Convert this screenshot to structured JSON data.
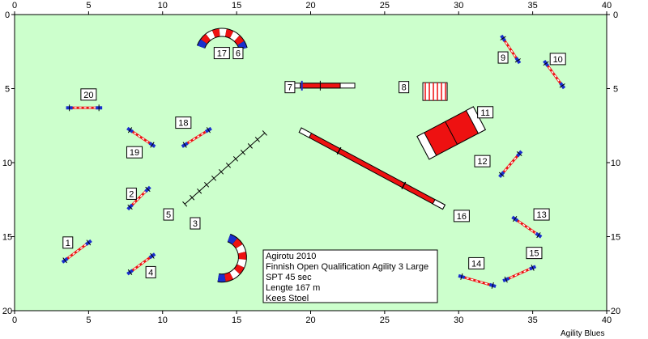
{
  "course": {
    "field": {
      "width_m": 40,
      "height_m": 20,
      "background": "#ccffcc"
    },
    "x_ticks": [
      "0",
      "5",
      "10",
      "15",
      "20",
      "25",
      "30",
      "35",
      "40"
    ],
    "y_ticks": [
      "0",
      "5",
      "10",
      "15",
      "20"
    ],
    "info_lines": [
      "Agirotu 2010",
      "Finnish Open Qualification Agility 3 Large",
      "SPT 45 sec",
      "Lengte 167 m",
      "Kees Stoel"
    ],
    "footer": "Agility Blues",
    "colors": {
      "red": "#ee1111",
      "blue": "#1a2fcc",
      "white": "#ffffff",
      "black": "#000000"
    },
    "obstacle_labels": [
      {
        "text": "1",
        "x": 3.6,
        "y": 15.4
      },
      {
        "text": "2",
        "x": 7.9,
        "y": 12.1
      },
      {
        "text": "3",
        "x": 12.2,
        "y": 14.1
      },
      {
        "text": "4",
        "x": 9.2,
        "y": 17.4
      },
      {
        "text": "5",
        "x": 10.4,
        "y": 13.5
      },
      {
        "text": "6",
        "x": 15.1,
        "y": 2.6
      },
      {
        "text": "7",
        "x": 18.6,
        "y": 4.9
      },
      {
        "text": "8",
        "x": 26.3,
        "y": 4.9
      },
      {
        "text": "9",
        "x": 33.0,
        "y": 2.9
      },
      {
        "text": "10",
        "x": 36.7,
        "y": 3.0
      },
      {
        "text": "11",
        "x": 31.8,
        "y": 6.6
      },
      {
        "text": "12",
        "x": 31.6,
        "y": 9.9
      },
      {
        "text": "13",
        "x": 35.6,
        "y": 13.5
      },
      {
        "text": "14",
        "x": 31.2,
        "y": 16.8
      },
      {
        "text": "15",
        "x": 35.1,
        "y": 16.1
      },
      {
        "text": "16",
        "x": 30.2,
        "y": 13.6
      },
      {
        "text": "17",
        "x": 14.0,
        "y": 2.6
      },
      {
        "text": "18",
        "x": 11.4,
        "y": 7.3
      },
      {
        "text": "19",
        "x": 8.1,
        "y": 9.3
      },
      {
        "text": "20",
        "x": 5.0,
        "y": 5.4
      }
    ],
    "jumps": [
      {
        "x1": 3.4,
        "y1": 16.6,
        "x2": 5.0,
        "y2": 15.4
      },
      {
        "x1": 7.8,
        "y1": 13.0,
        "x2": 9.0,
        "y2": 11.8
      },
      {
        "x1": 7.8,
        "y1": 17.4,
        "x2": 9.3,
        "y2": 16.3
      },
      {
        "x1": 7.8,
        "y1": 7.8,
        "x2": 9.3,
        "y2": 8.8
      },
      {
        "x1": 11.5,
        "y1": 8.8,
        "x2": 13.1,
        "y2": 7.8
      },
      {
        "x1": 3.7,
        "y1": 6.3,
        "x2": 5.7,
        "y2": 6.3
      },
      {
        "x1": 33.0,
        "y1": 1.6,
        "x2": 34.0,
        "y2": 3.1
      },
      {
        "x1": 35.9,
        "y1": 3.3,
        "x2": 37.0,
        "y2": 4.8
      },
      {
        "x1": 32.9,
        "y1": 10.8,
        "x2": 34.1,
        "y2": 9.4
      },
      {
        "x1": 33.8,
        "y1": 13.8,
        "x2": 35.4,
        "y2": 14.9
      },
      {
        "x1": 30.2,
        "y1": 17.7,
        "x2": 32.3,
        "y2": 18.3
      },
      {
        "x1": 33.2,
        "y1": 17.9,
        "x2": 35.0,
        "y2": 17.1
      }
    ],
    "dogwalk": {
      "x1": 19.3,
      "y1": 4.8,
      "x2": 22.0,
      "y2": 4.8
    },
    "seesaw": {
      "x1": 19.3,
      "y1": 7.8,
      "x2": 29.0,
      "y2": 13.0
    },
    "weaves": {
      "x1": 11.5,
      "y1": 12.8,
      "x2": 16.9,
      "y2": 8.0,
      "poles": 12
    },
    "wall": {
      "x": 27.8,
      "y": 5.2
    },
    "aframe": {
      "x1": 27.6,
      "y1": 9.0,
      "x2": 31.4,
      "y2": 7.0
    },
    "tunnels": [
      {
        "cx": 14.0,
        "cy": 2.7,
        "r": 1.5,
        "a1": 200,
        "a2": 345
      },
      {
        "cx": 14.0,
        "cy": 16.4,
        "r": 1.4,
        "a1": 290,
        "a2": 460
      }
    ]
  }
}
